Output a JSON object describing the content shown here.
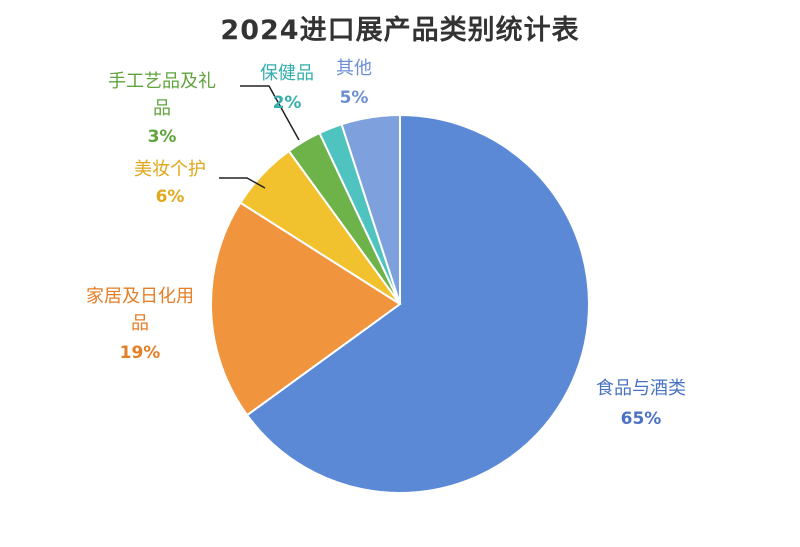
{
  "chart_data": {
    "type": "pie",
    "title": "2024进口展产品类别统计表",
    "slices": [
      {
        "label": "食品与酒类",
        "value": 65,
        "value_label": "65%",
        "color": "#5b89d6",
        "label_color": "#4a72c4"
      },
      {
        "label": "家居及日化用品",
        "value": 19,
        "value_label": "19%",
        "color": "#f0943d",
        "label_color": "#e57e25"
      },
      {
        "label": "美妆个护",
        "value": 6,
        "value_label": "6%",
        "color": "#f2c12e",
        "label_color": "#e0a81a"
      },
      {
        "label": "手工艺品及礼品",
        "value": 3,
        "value_label": "3%",
        "color": "#6eb24a",
        "label_color": "#5fa43c"
      },
      {
        "label": "保健品",
        "value": 2,
        "value_label": "2%",
        "color": "#4ec3c0",
        "label_color": "#35aeae"
      },
      {
        "label": "其他",
        "value": 5,
        "value_label": "5%",
        "color": "#7ea1dd",
        "label_color": "#6b8fd3"
      }
    ],
    "start_angle_deg": 0,
    "direction": "clockwise",
    "legend": "none"
  }
}
